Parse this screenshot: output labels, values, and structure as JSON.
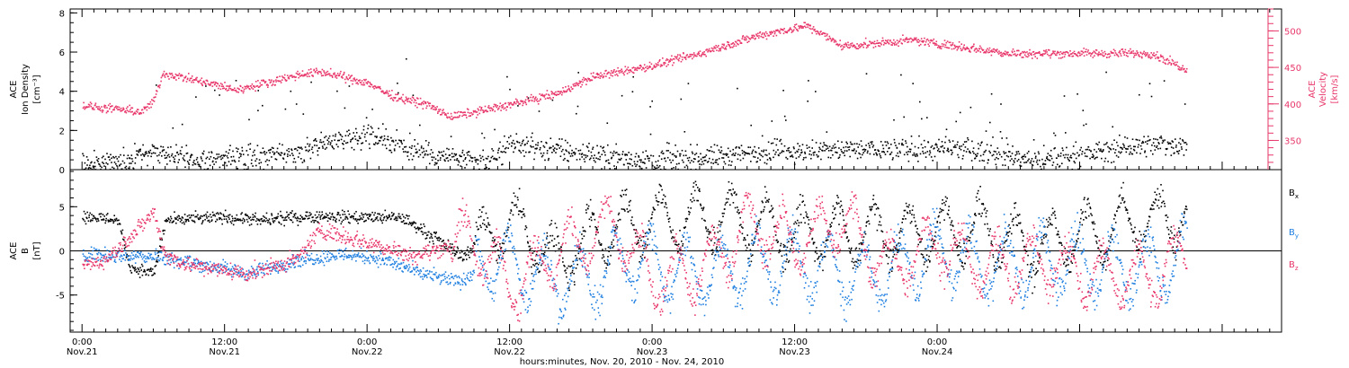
{
  "chart_data": [
    {
      "type": "scatter",
      "panel": "top",
      "left_axis": {
        "title_lines": [
          "ACE",
          "Ion Density",
          "[cm⁻³]"
        ],
        "ticks": [
          0,
          2,
          4,
          6,
          8
        ],
        "ylim": [
          0,
          8.2
        ],
        "color": "#000000"
      },
      "right_axis": {
        "title_lines": [
          "ACE",
          "Velocity",
          "[km/s]"
        ],
        "ticks": [
          350,
          400,
          450,
          500
        ],
        "ylim": [
          310,
          530
        ],
        "color": "#e8376a"
      },
      "series": [
        {
          "color": "#000000",
          "axis": "left",
          "anchors": [
            [
              0,
              0.3
            ],
            [
              4,
              0.5
            ],
            [
              6,
              1.0
            ],
            [
              10,
              0.5
            ],
            [
              18,
              0.8
            ],
            [
              20,
              1.4
            ],
            [
              24,
              1.8
            ],
            [
              29,
              0.9
            ],
            [
              34,
              0.3
            ],
            [
              36,
              1.3
            ],
            [
              40,
              1.0
            ],
            [
              48,
              0.5
            ],
            [
              60,
              1.0
            ],
            [
              70,
              1.1
            ],
            [
              75,
              1.0
            ],
            [
              80,
              0.5
            ],
            [
              90,
              1.3
            ],
            [
              100,
              1.3
            ]
          ],
          "noise": 0.5,
          "spike_prob": 0.06,
          "spike_max": 4.0
        },
        {
          "color": "#e8376a",
          "axis": "right",
          "anchors": [
            [
              0,
              398
            ],
            [
              5,
              390
            ],
            [
              6,
              405
            ],
            [
              6.8,
              443
            ],
            [
              13,
              420
            ],
            [
              18,
              440
            ],
            [
              20,
              445
            ],
            [
              24,
              430
            ],
            [
              26,
              412
            ],
            [
              29,
              400
            ],
            [
              31,
              383
            ],
            [
              36,
              400
            ],
            [
              40,
              415
            ],
            [
              43,
              438
            ],
            [
              48,
              453
            ],
            [
              52,
              470
            ],
            [
              57,
              495
            ],
            [
              61,
              508
            ],
            [
              64,
              480
            ],
            [
              70,
              488
            ],
            [
              78,
              470
            ],
            [
              90,
              470
            ],
            [
              93,
              448
            ]
          ],
          "noise": 5
        }
      ]
    },
    {
      "type": "scatter",
      "panel": "bottom",
      "left_axis": {
        "title_lines": [
          "ACE",
          "B",
          "[nT]"
        ],
        "ticks": [
          -5,
          0,
          5
        ],
        "ylim": [
          -9.2,
          9.2
        ],
        "color": "#000000"
      },
      "zero_line": true,
      "series": [
        {
          "name_parts": [
            "B",
            "x"
          ],
          "color": "#000000",
          "anchors": [
            [
              0,
              4.0
            ],
            [
              3,
              3.6
            ],
            [
              4,
              -1.8
            ],
            [
              6,
              -2.5
            ],
            [
              7,
              3.5
            ],
            [
              12,
              3.9
            ],
            [
              15,
              3.5
            ],
            [
              19,
              4.0
            ],
            [
              23,
              3.9
            ],
            [
              27,
              3.8
            ],
            [
              32,
              -0.5
            ],
            [
              36,
              3.5
            ],
            [
              40,
              -1.0
            ],
            [
              44,
              2.2
            ],
            [
              48,
              3.5
            ],
            [
              54,
              3.8
            ],
            [
              60,
              2.0
            ],
            [
              70,
              2.0
            ],
            [
              76,
              2.5
            ],
            [
              80,
              0.5
            ],
            [
              86,
              2.5
            ],
            [
              90,
              3.7
            ],
            [
              93,
              4.0
            ]
          ],
          "noise": 0.6,
          "osc": 3.0,
          "osc_start": 33
        },
        {
          "name_parts": [
            "B",
            "y"
          ],
          "color": "#1f7fe0",
          "anchors": [
            [
              0,
              -0.2
            ],
            [
              3,
              -0.5
            ],
            [
              6,
              -0.5
            ],
            [
              11,
              -1.7
            ],
            [
              14,
              -2.5
            ],
            [
              18,
              -1.0
            ],
            [
              22,
              -0.3
            ],
            [
              25,
              -0.8
            ],
            [
              29,
              -2.7
            ],
            [
              32,
              -3.5
            ],
            [
              34,
              -0.5
            ],
            [
              38,
              -2.5
            ],
            [
              42,
              -3.5
            ],
            [
              46,
              -1.0
            ],
            [
              52,
              -2.5
            ],
            [
              60,
              -1.0
            ],
            [
              66,
              -3.0
            ],
            [
              72,
              0.0
            ],
            [
              76,
              -1.5
            ],
            [
              82,
              -1.0
            ],
            [
              88,
              -2.0
            ],
            [
              93,
              -1.2
            ]
          ],
          "noise": 0.7,
          "osc": 3.5,
          "osc_start": 33
        },
        {
          "name_parts": [
            "B",
            "z"
          ],
          "color": "#e8376a",
          "anchors": [
            [
              0,
              -1.5
            ],
            [
              2,
              -1.0
            ],
            [
              5,
              3.0
            ],
            [
              6,
              4.5
            ],
            [
              7,
              -0.5
            ],
            [
              9,
              -1.5
            ],
            [
              11,
              -2.0
            ],
            [
              14,
              -2.5
            ],
            [
              18,
              -1.0
            ],
            [
              20,
              2.5
            ],
            [
              24,
              1.0
            ],
            [
              28,
              -0.5
            ],
            [
              33,
              1.5
            ],
            [
              36,
              -4.0
            ],
            [
              40,
              0.0
            ],
            [
              45,
              3.0
            ],
            [
              48,
              -3.5
            ],
            [
              52,
              -2.0
            ],
            [
              56,
              3.0
            ],
            [
              60,
              1.0
            ],
            [
              64,
              3.5
            ],
            [
              68,
              -2.0
            ],
            [
              72,
              1.0
            ],
            [
              76,
              -2.0
            ],
            [
              80,
              -1.0
            ],
            [
              85,
              -2.5
            ],
            [
              90,
              -3.0
            ],
            [
              93,
              0.0
            ]
          ],
          "noise": 0.8,
          "osc": 3.0,
          "osc_start": 31
        }
      ]
    }
  ],
  "x_axis": {
    "range_hours": [
      -1,
      101
    ],
    "data_end_hour": 93,
    "ticks": [
      {
        "hour": 0,
        "line1": "0:00",
        "line2": "Nov.21"
      },
      {
        "hour": 12,
        "line1": "12:00",
        "line2": "Nov.21"
      },
      {
        "hour": 24,
        "line1": "0:00",
        "line2": "Nov.22"
      },
      {
        "hour": 36,
        "line1": "12:00",
        "line2": "Nov.22"
      },
      {
        "hour": 48,
        "line1": "0:00",
        "line2": "Nov.23"
      },
      {
        "hour": 60,
        "line1": "12:00",
        "line2": "Nov.23"
      },
      {
        "hour": 72,
        "line1": "0:00",
        "line2": "Nov.24"
      }
    ],
    "label": "hours:minutes, Nov. 20, 2010 - Nov. 24, 2010"
  }
}
